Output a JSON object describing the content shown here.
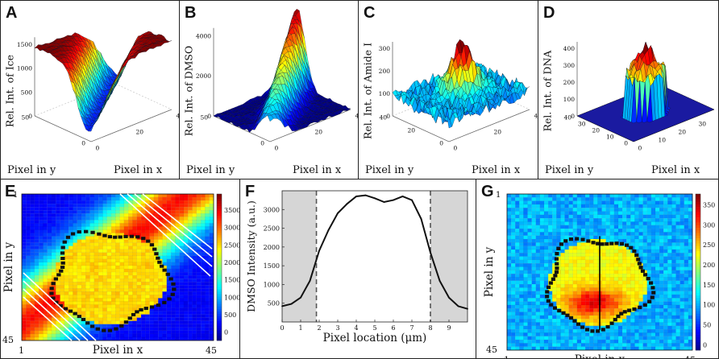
{
  "figure": {
    "panel_letters": [
      "A",
      "B",
      "C",
      "D",
      "E",
      "F",
      "G"
    ],
    "panels": [
      {
        "letter": "A",
        "zlabel": "Rel. Int. of Ice",
        "zticks": [
          "1500",
          "1000",
          "500",
          "0"
        ],
        "yticks": [
          "50",
          "0"
        ],
        "xticks": [
          "0",
          "20",
          "40"
        ],
        "xlabel": "Pixel in x",
        "ylabel": "Pixel in y"
      },
      {
        "letter": "B",
        "zlabel": "Rel. Int. of DMSO",
        "zticks": [
          "4000",
          "2000",
          "0"
        ],
        "yticks": [
          "50",
          "0"
        ],
        "xticks": [
          "0",
          "20",
          "40"
        ],
        "xlabel": "Pixel in x",
        "ylabel": "Pixel in y"
      },
      {
        "letter": "C",
        "zlabel": "Rel. Int. of Amide I",
        "zticks": [
          "300",
          "200",
          "100",
          "0"
        ],
        "yticks": [
          "40",
          "20",
          "0"
        ],
        "xticks": [
          "0",
          "20",
          "40"
        ],
        "xlabel": "Pixel in x",
        "ylabel": "Pixel in y"
      },
      {
        "letter": "D",
        "zlabel": "Rel. Int. of DNA",
        "zticks": [
          "400",
          "300",
          "200",
          "100",
          "0"
        ],
        "yticks": [
          "40",
          "30",
          "20",
          "10",
          "0"
        ],
        "xticks": [
          "0",
          "10",
          "20",
          "30",
          "40"
        ],
        "xlabel": "Pixel in x",
        "ylabel": "Pixel in y"
      }
    ],
    "panel_e": {
      "letter": "E",
      "xlabel": "Pixel in x",
      "ylabel": "Pixel in y",
      "corner_top": "1",
      "corner_bottom": "45",
      "corner_left": "1",
      "corner_right": "45",
      "colorbar_ticks": [
        "3500",
        "3000",
        "2500",
        "2000",
        "1500",
        "1000",
        "500",
        "0"
      ]
    },
    "panel_g": {
      "letter": "G",
      "xlabel": "Pixel in x",
      "ylabel": "Pixel in y",
      "corner_top": "1",
      "corner_bottom": "45",
      "corner_left": "1",
      "corner_right": "45",
      "colorbar_ticks": [
        "350",
        "300",
        "250",
        "200",
        "150",
        "100",
        "50",
        "0"
      ]
    }
  },
  "chart_data": {
    "type": "line",
    "title": "",
    "xlabel": "Pixel location (μm)",
    "ylabel": "DMSO Intensity (a.u.)",
    "x": [
      0,
      0.5,
      1,
      1.5,
      2,
      2.5,
      3,
      3.5,
      4,
      4.5,
      5,
      5.5,
      6,
      6.5,
      7,
      7.5,
      8,
      8.5,
      9,
      9.5,
      10
    ],
    "y": [
      420,
      480,
      650,
      1100,
      1900,
      2450,
      2900,
      3150,
      3350,
      3380,
      3300,
      3200,
      3250,
      3350,
      3250,
      2750,
      1850,
      1100,
      650,
      420,
      350
    ],
    "xlim": [
      0,
      10
    ],
    "ylim": [
      0,
      3500
    ],
    "xticks": [
      "0",
      "1",
      "2",
      "3",
      "4",
      "5",
      "6",
      "7",
      "8",
      "9"
    ],
    "yticks": [
      "500",
      "1000",
      "1500",
      "2000",
      "2500",
      "3000"
    ],
    "shaded_regions": [
      [
        0,
        1.85
      ],
      [
        8,
        10
      ]
    ],
    "dashed_lines_x": [
      1.85,
      8
    ]
  }
}
